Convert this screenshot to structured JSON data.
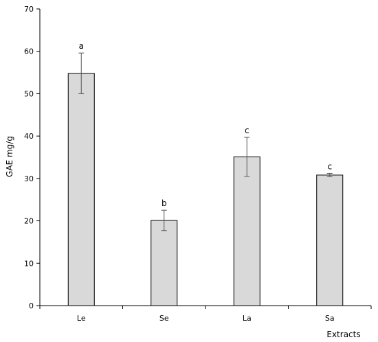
{
  "chart_data": {
    "type": "bar",
    "categories": [
      "Le",
      "Se",
      "La",
      "Sa"
    ],
    "values": [
      54.8,
      20.1,
      35.1,
      30.8
    ],
    "errors": [
      4.8,
      2.4,
      4.6,
      0.4
    ],
    "significance": [
      "a",
      "b",
      "c",
      "c"
    ],
    "xlabel": "Extracts",
    "ylabel": "GAE mg/g",
    "ylim": [
      0,
      70
    ],
    "yticks": [
      0,
      10,
      20,
      30,
      40,
      50,
      60,
      70
    ],
    "bar_color": "#d9d9d9",
    "bar_edge_color": "#000000",
    "grid": false
  }
}
